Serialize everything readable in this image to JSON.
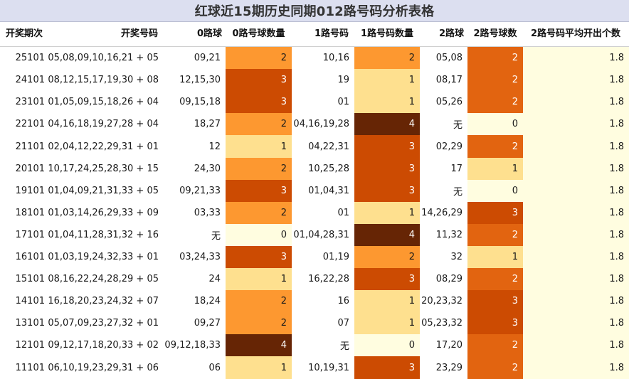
{
  "title": "红球近15期历史同期012路号码分析表格",
  "headers": {
    "period": "开奖期次",
    "numbers": "开奖号码",
    "r0": "0路球",
    "r0_count": "0路号球数量",
    "r1": "1路号码",
    "r1_count": "1路号码数量",
    "r2": "2路球",
    "r2_count": "2路号球数",
    "avg": "2路号码平均开出个数"
  },
  "count_colors": {
    "0": "#fffde0",
    "1": "#fee08f",
    "2": "#fd9830",
    "3": "#cc4b02",
    "4": "#662505"
  },
  "count_colors_alt": {
    "2": "#e26410"
  },
  "rows": [
    {
      "period": "25101",
      "numbers": "05,08,09,10,16,21 + 05",
      "r0": "09,21",
      "r0_count": "2",
      "r1": "10,16",
      "r1_count": "2",
      "r2": "05,08",
      "r2_count": "2",
      "avg": "1.8"
    },
    {
      "period": "24101",
      "numbers": "08,12,15,17,19,30 + 08",
      "r0": "12,15,30",
      "r0_count": "3",
      "r1": "19",
      "r1_count": "1",
      "r2": "08,17",
      "r2_count": "2",
      "avg": "1.8"
    },
    {
      "period": "23101",
      "numbers": "01,05,09,15,18,26 + 04",
      "r0": "09,15,18",
      "r0_count": "3",
      "r1": "01",
      "r1_count": "1",
      "r2": "05,26",
      "r2_count": "2",
      "avg": "1.8"
    },
    {
      "period": "22101",
      "numbers": "04,16,18,19,27,28 + 04",
      "r0": "18,27",
      "r0_count": "2",
      "r1": "04,16,19,28",
      "r1_count": "4",
      "r2": "无",
      "r2_count": "0",
      "avg": "1.8"
    },
    {
      "period": "21101",
      "numbers": "02,04,12,22,29,31 + 01",
      "r0": "12",
      "r0_count": "1",
      "r1": "04,22,31",
      "r1_count": "3",
      "r2": "02,29",
      "r2_count": "2",
      "avg": "1.8"
    },
    {
      "period": "20101",
      "numbers": "10,17,24,25,28,30 + 15",
      "r0": "24,30",
      "r0_count": "2",
      "r1": "10,25,28",
      "r1_count": "3",
      "r2": "17",
      "r2_count": "1",
      "avg": "1.8"
    },
    {
      "period": "19101",
      "numbers": "01,04,09,21,31,33 + 05",
      "r0": "09,21,33",
      "r0_count": "3",
      "r1": "01,04,31",
      "r1_count": "3",
      "r2": "无",
      "r2_count": "0",
      "avg": "1.8"
    },
    {
      "period": "18101",
      "numbers": "01,03,14,26,29,33 + 09",
      "r0": "03,33",
      "r0_count": "2",
      "r1": "01",
      "r1_count": "1",
      "r2": "14,26,29",
      "r2_count": "3",
      "avg": "1.8"
    },
    {
      "period": "17101",
      "numbers": "01,04,11,28,31,32 + 16",
      "r0": "无",
      "r0_count": "0",
      "r1": "01,04,28,31",
      "r1_count": "4",
      "r2": "11,32",
      "r2_count": "2",
      "avg": "1.8"
    },
    {
      "period": "16101",
      "numbers": "01,03,19,24,32,33 + 01",
      "r0": "03,24,33",
      "r0_count": "3",
      "r1": "01,19",
      "r1_count": "2",
      "r2": "32",
      "r2_count": "1",
      "avg": "1.8"
    },
    {
      "period": "15101",
      "numbers": "08,16,22,24,28,29 + 05",
      "r0": "24",
      "r0_count": "1",
      "r1": "16,22,28",
      "r1_count": "3",
      "r2": "08,29",
      "r2_count": "2",
      "avg": "1.8"
    },
    {
      "period": "14101",
      "numbers": "16,18,20,23,24,32 + 07",
      "r0": "18,24",
      "r0_count": "2",
      "r1": "16",
      "r1_count": "1",
      "r2": "20,23,32",
      "r2_count": "3",
      "avg": "1.8"
    },
    {
      "period": "13101",
      "numbers": "05,07,09,23,27,32 + 01",
      "r0": "09,27",
      "r0_count": "2",
      "r1": "07",
      "r1_count": "1",
      "r2": "05,23,32",
      "r2_count": "3",
      "avg": "1.8"
    },
    {
      "period": "12101",
      "numbers": "09,12,17,18,20,33 + 02",
      "r0": "09,12,18,33",
      "r0_count": "4",
      "r1": "无",
      "r1_count": "0",
      "r2": "17,20",
      "r2_count": "2",
      "avg": "1.8"
    },
    {
      "period": "11101",
      "numbers": "06,10,19,23,29,31 + 06",
      "r0": "06",
      "r0_count": "1",
      "r1": "10,19,31",
      "r1_count": "3",
      "r2": "23,29",
      "r2_count": "2",
      "avg": "1.8"
    }
  ]
}
